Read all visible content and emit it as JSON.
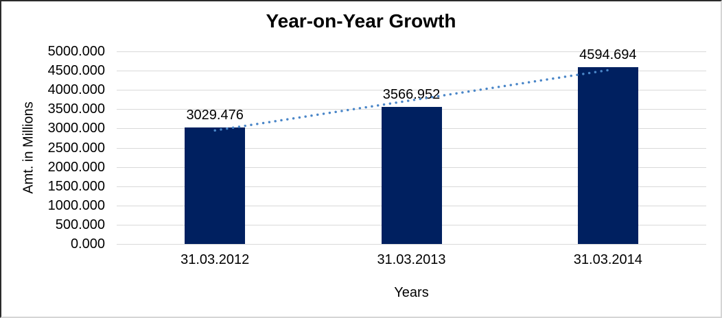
{
  "window": {
    "background_color": "#ffffff",
    "frame_border_dark": "#2b2b2b",
    "frame_border_light": "#d5d5d5"
  },
  "chart_data": {
    "type": "bar",
    "title": "Year-on-Year Growth",
    "xlabel": "Years",
    "ylabel": "Amt. in Millions",
    "categories": [
      "31.03.2012",
      "31.03.2013",
      "31.03.2014"
    ],
    "values": [
      3029.476,
      3566.952,
      4594.694
    ],
    "data_labels": [
      "3029.476",
      "3566.952",
      "4594.694"
    ],
    "ylim": [
      0,
      5000
    ],
    "y_tick_step": 500,
    "y_tick_labels": [
      "5000.000",
      "4500.000",
      "4000.000",
      "3500.000",
      "3000.000",
      "2500.000",
      "2000.000",
      "1500.000",
      "1000.000",
      "500.000",
      "0.000"
    ],
    "grid": true,
    "legend": "none",
    "bar_color": "#002060",
    "gridline_color": "#d9d9d9",
    "text_color": "#000000",
    "trendline": {
      "type": "linear",
      "style": "dotted",
      "color": "#4a86c8"
    }
  }
}
